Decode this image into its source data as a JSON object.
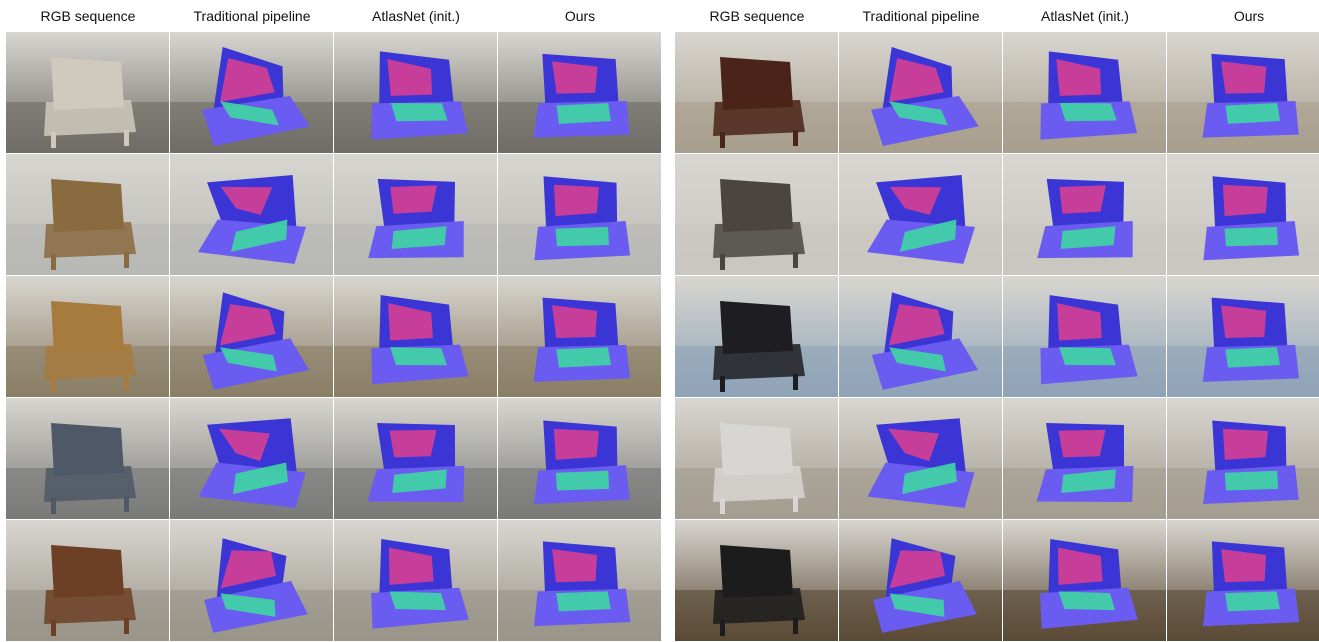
{
  "figure": {
    "left_panel": {
      "columns": [
        "RGB sequence",
        "Traditional pipeline",
        "AtlasNet (init.)",
        "Ours"
      ],
      "rows": [
        {
          "subject": "white armchair",
          "photo_color": "#cfcabd",
          "bg": "#6f6c66"
        },
        {
          "subject": "wooden recliner with cushion",
          "photo_color": "#8a6a3f",
          "bg": "#b8b8b4"
        },
        {
          "subject": "wooden rocking chair",
          "photo_color": "#a77a3e",
          "bg": "#8a7e66"
        },
        {
          "subject": "grey sofa chair with yellow trim",
          "photo_color": "#4f5866",
          "bg": "#7a7a78"
        },
        {
          "subject": "wooden chair with patterned seat",
          "photo_color": "#6d3f24",
          "bg": "#9a9488"
        }
      ]
    },
    "right_panel": {
      "columns": [
        "RGB sequence",
        "Traditional pipeline",
        "AtlasNet (init.)",
        "Ours"
      ],
      "rows": [
        {
          "subject": "leather tufted chair",
          "photo_color": "#4a2418",
          "bg": "#a89e8e"
        },
        {
          "subject": "patterned armchair",
          "photo_color": "#4a463f",
          "bg": "#c9c6c0"
        },
        {
          "subject": "black office chair",
          "photo_color": "#1e1e22",
          "bg": "#8fa3b8"
        },
        {
          "subject": "white wooden chair",
          "photo_color": "#d8d6d2",
          "bg": "#a39c90"
        },
        {
          "subject": "black stool chair",
          "photo_color": "#1c1c1c",
          "bg": "#5a4a36"
        }
      ]
    },
    "normal_map_colors": [
      "#3b35d6",
      "#e0408f",
      "#3fd6a2",
      "#6a5cf0"
    ]
  }
}
